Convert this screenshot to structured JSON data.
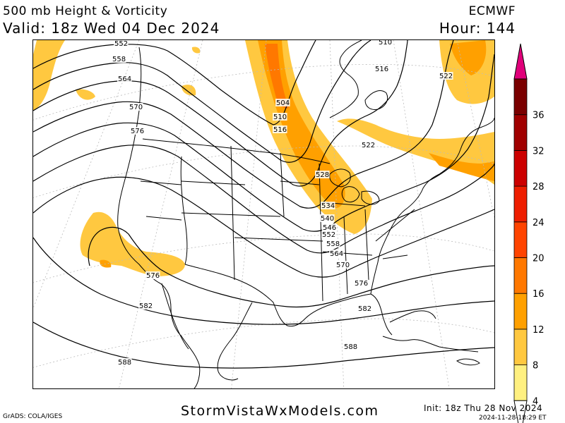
{
  "header": {
    "title_left_1": "500 mb Height & Vorticity",
    "title_left_2": "Valid: 18z Wed 04 Dec 2024",
    "title_right_1": "ECMWF",
    "title_right_2": "Hour: 144"
  },
  "colorbar": {
    "levels": [
      4,
      8,
      12,
      16,
      20,
      24,
      28,
      32,
      36
    ],
    "colors": [
      "#fff080",
      "#ffc840",
      "#ffa000",
      "#ff7800",
      "#ff4400",
      "#ee1e00",
      "#cc0000",
      "#a00000",
      "#7a0000"
    ],
    "arrow_color": "#e0007a"
  },
  "contour_labels": [
    {
      "text": "552"
    },
    {
      "text": "558"
    },
    {
      "text": "564"
    },
    {
      "text": "570"
    },
    {
      "text": "576"
    },
    {
      "text": "576"
    },
    {
      "text": "582"
    },
    {
      "text": "588"
    },
    {
      "text": "588"
    },
    {
      "text": "510"
    },
    {
      "text": "516"
    },
    {
      "text": "522"
    },
    {
      "text": "504"
    },
    {
      "text": "510"
    },
    {
      "text": "516"
    },
    {
      "text": "522"
    },
    {
      "text": "528"
    },
    {
      "text": "534"
    },
    {
      "text": "540"
    },
    {
      "text": "546"
    },
    {
      "text": "552"
    },
    {
      "text": "558"
    },
    {
      "text": "564"
    },
    {
      "text": "570"
    },
    {
      "text": "576"
    },
    {
      "text": "582"
    }
  ],
  "footer": {
    "grads": "GrADS: COLA/IGES",
    "site": "StormVistaWxModels.com",
    "init": "Init: 18z Thu 28 Nov 2024",
    "stamp": "2024-11-28-18:29 ET"
  }
}
